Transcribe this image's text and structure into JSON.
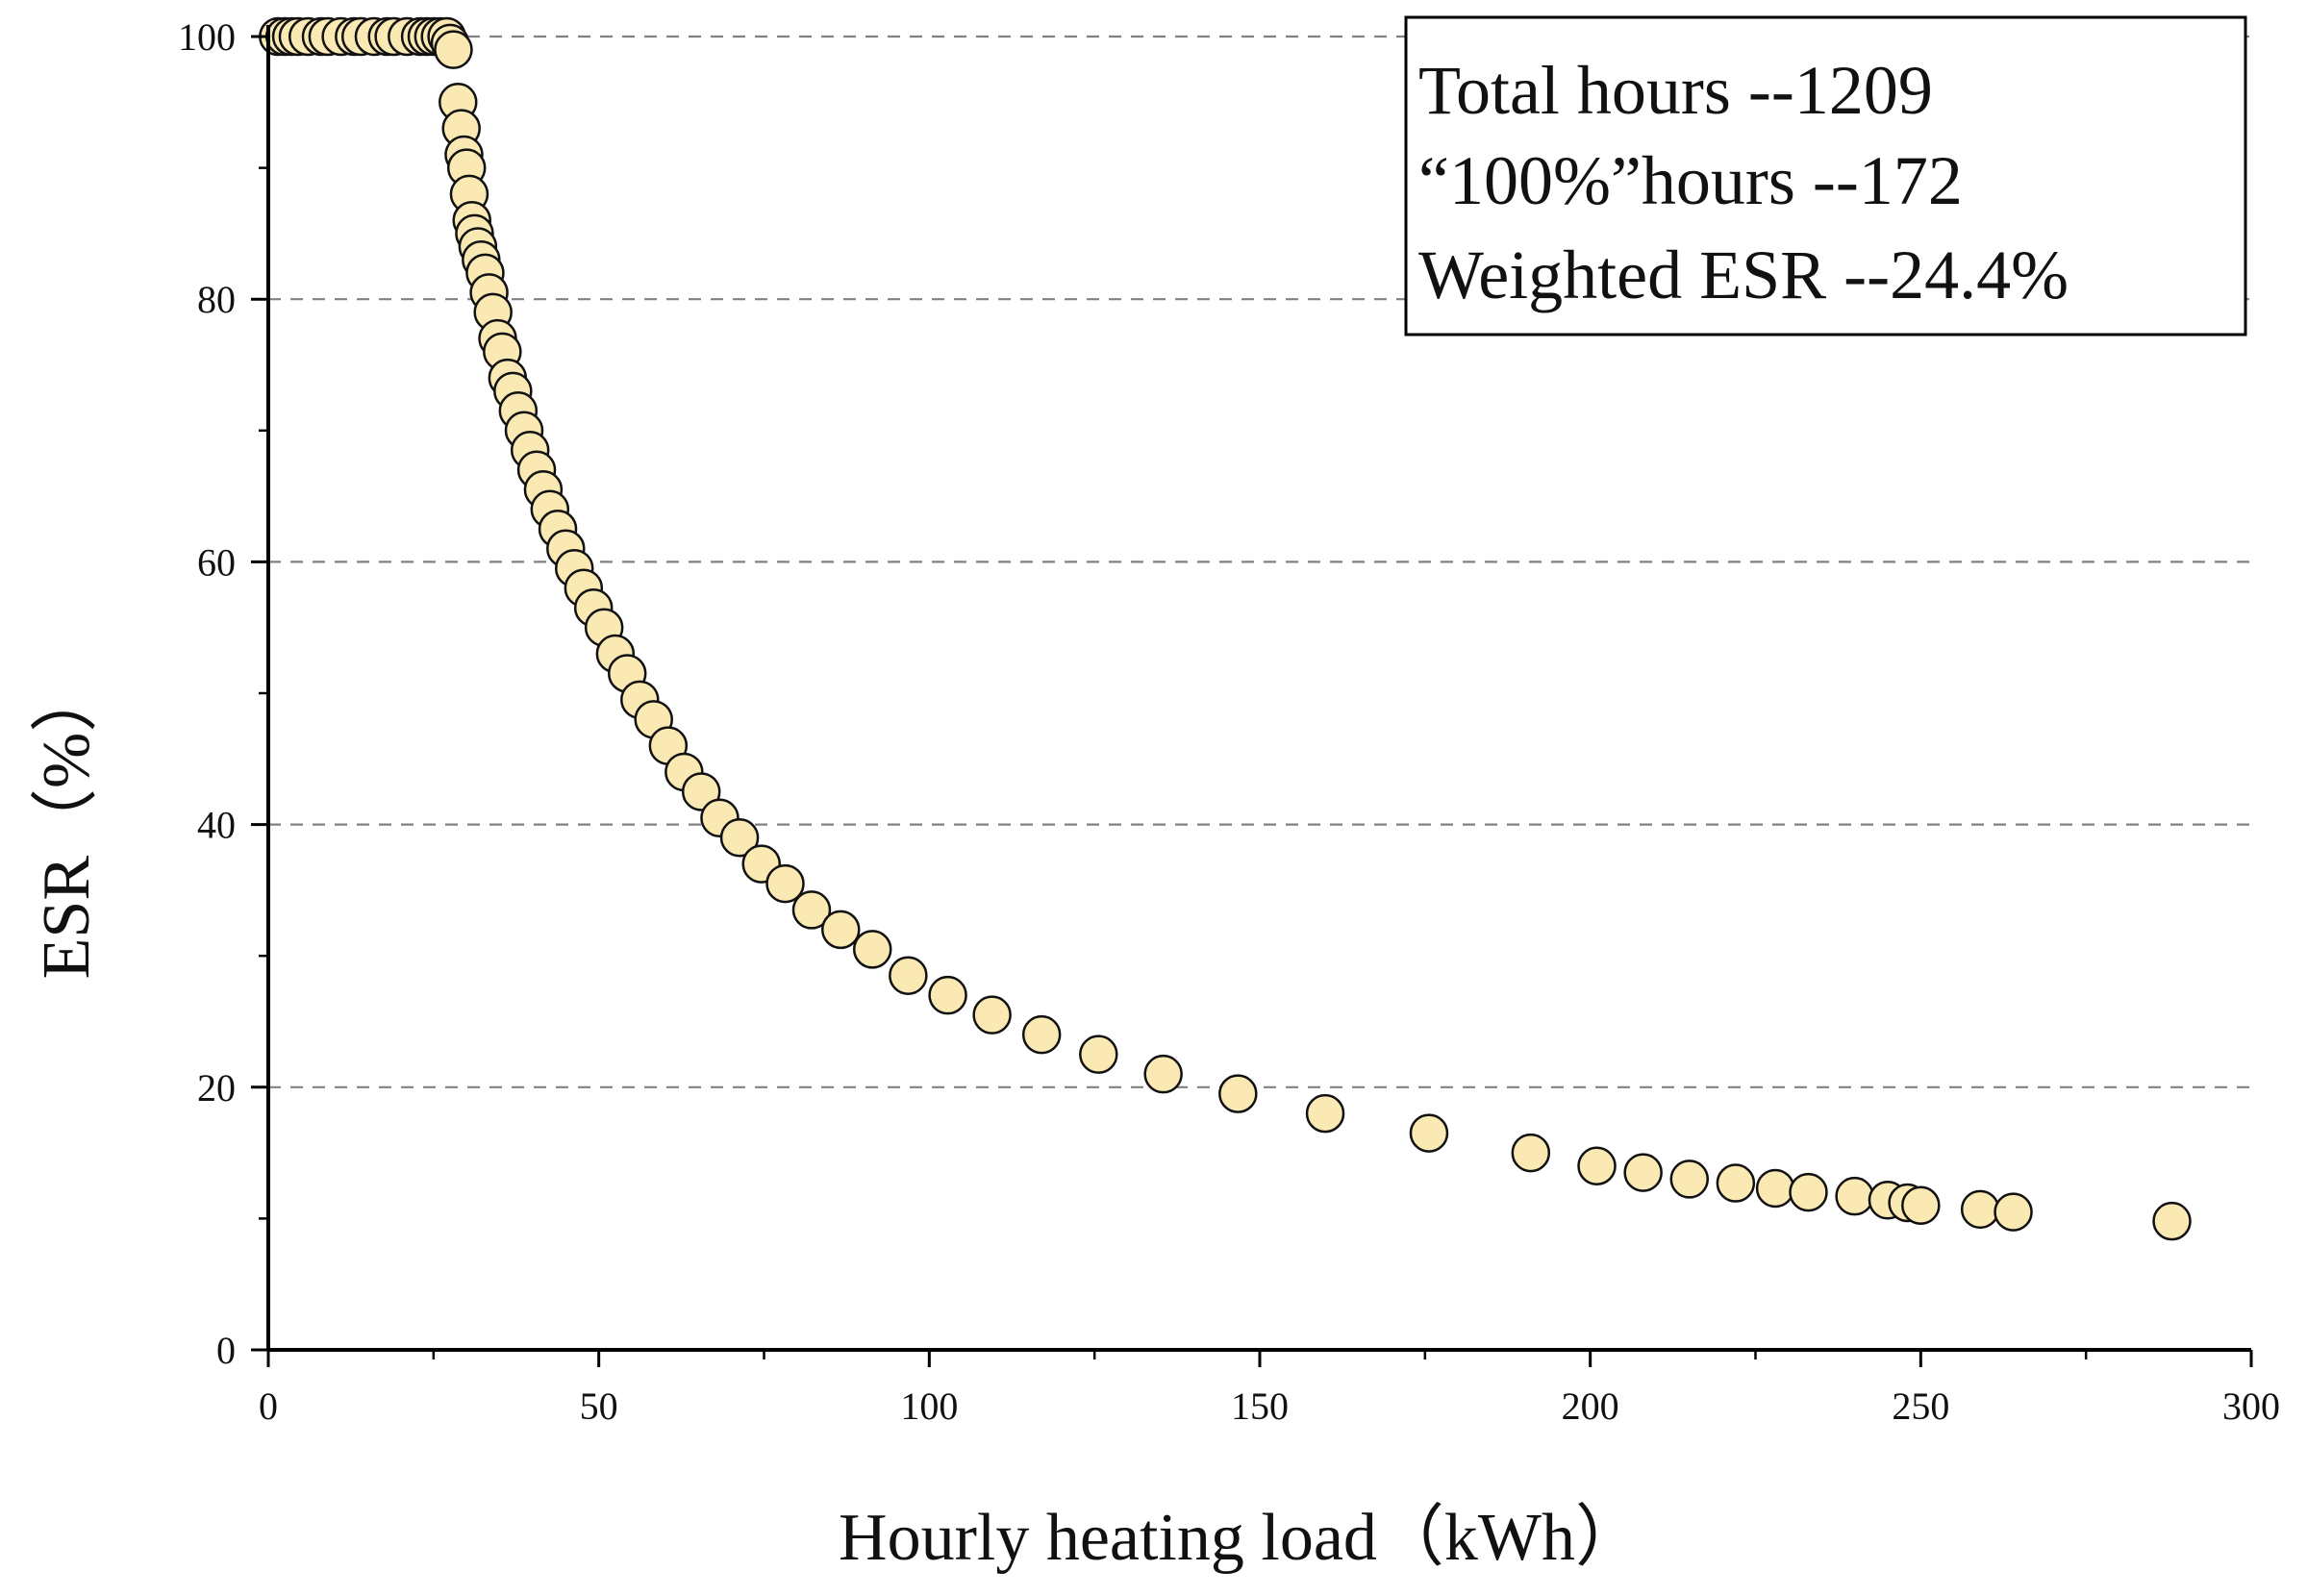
{
  "chart_data": {
    "type": "scatter",
    "title": "",
    "xlabel": "Hourly heating load（kWh）",
    "ylabel": "ESR（%）",
    "xlim": [
      0,
      300
    ],
    "ylim": [
      0,
      100
    ],
    "x_ticks": [
      "0",
      "50",
      "100",
      "150",
      "200",
      "250",
      "300"
    ],
    "y_ticks": [
      "0",
      "20",
      "40",
      "60",
      "80",
      "100"
    ],
    "grid": "horizontal dashed",
    "legend_position": "top-right",
    "annotations": [
      "Total hours --1209",
      "“100%”hours --172",
      "Weighted ESR --24.4%"
    ],
    "colors": {
      "marker_fill": "#fbe9b4",
      "marker_stroke": "#111111",
      "grid": "#808080",
      "axis": "#000000"
    },
    "series": [
      {
        "name": "ESR",
        "x": [
          1.5,
          2.5,
          3.5,
          4.5,
          6,
          8,
          9,
          11,
          13,
          14,
          16,
          18,
          19,
          21,
          23,
          24,
          25,
          26,
          27,
          27.5,
          28,
          28.7,
          29.2,
          29.6,
          30,
          30.4,
          30.8,
          31.2,
          31.7,
          32.2,
          32.8,
          33.4,
          34,
          34.7,
          35.4,
          36.2,
          37,
          37.8,
          38.7,
          39.6,
          40.6,
          41.6,
          42.6,
          43.8,
          45,
          46.3,
          47.7,
          49.2,
          50.8,
          52.5,
          54.3,
          56.2,
          58.3,
          60.5,
          62.9,
          65.5,
          68.3,
          71.3,
          74.6,
          78.2,
          82.2,
          86.6,
          91.4,
          96.8,
          102.8,
          109.5,
          117,
          125.6,
          135.4,
          146.7,
          159.9,
          175.6,
          191,
          201,
          208,
          215,
          222,
          228,
          233,
          240,
          245,
          248,
          250,
          259,
          264,
          288
        ],
        "values": [
          100,
          100,
          100,
          100,
          100,
          100,
          100,
          100,
          100,
          100,
          100,
          100,
          100,
          100,
          100,
          100,
          100,
          100,
          100,
          99.5,
          99,
          95,
          93,
          91,
          90,
          88,
          86,
          85,
          84,
          83,
          82,
          80.5,
          79,
          77,
          76,
          74,
          73,
          71.5,
          70,
          68.5,
          67,
          65.5,
          64,
          62.5,
          61,
          59.5,
          58,
          56.5,
          55,
          53,
          51.5,
          49.5,
          48,
          46,
          44,
          42.5,
          40.5,
          39,
          37,
          35.5,
          33.5,
          32,
          30.5,
          28.5,
          27,
          25.5,
          24,
          22.5,
          21,
          19.5,
          18,
          16.5,
          15,
          14,
          13.5,
          13,
          12.7,
          12.3,
          12,
          11.7,
          11.4,
          11.2,
          11,
          10.7,
          10.5,
          9.8
        ]
      }
    ]
  }
}
